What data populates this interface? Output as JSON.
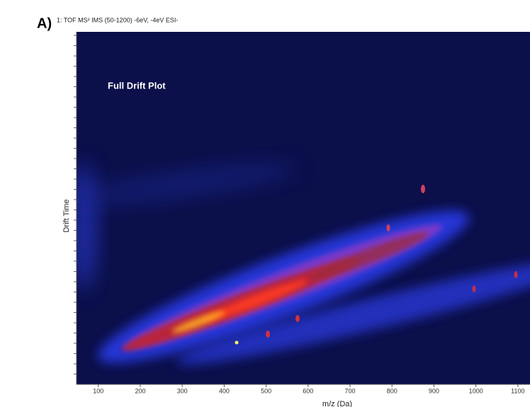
{
  "label": "A)",
  "header": "1: TOF MS² IMS (50-1200) -6eV, -4eV ESI-",
  "chart_data": {
    "type": "density",
    "annotation": "Full Drift Plot",
    "x_label": "m/z (Da)",
    "y_label": "Drift Time",
    "xlim": [
      48,
      1129
    ],
    "xticks": [
      100,
      200,
      300,
      400,
      500,
      600,
      700,
      800,
      900,
      1000,
      1100
    ]
  }
}
